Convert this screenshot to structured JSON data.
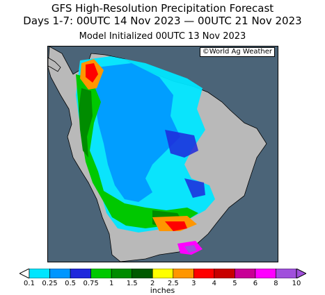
{
  "header": {
    "title": "GFS High-Resolution Precipitation Forecast",
    "period": "Days 1-7: 00UTC 14 Nov 2023 — 00UTC 21 Nov 2023",
    "init": "Model Initialized 00UTC 13 Nov 2023"
  },
  "map": {
    "credit": "©World Ag Weather",
    "ocean_color": "#4b6478",
    "land_color": "#b9b9b9"
  },
  "legend": {
    "units": "inches",
    "ticks": [
      "0.1",
      "0.25",
      "0.5",
      "0.75",
      "1",
      "1.5",
      "2",
      "2.5",
      "3",
      "4",
      "5",
      "6",
      "8",
      "10"
    ],
    "colors": [
      "#00e6ff",
      "#0096ff",
      "#1e28dc",
      "#00c800",
      "#008c00",
      "#005a00",
      "#ffff00",
      "#ff9600",
      "#ff0000",
      "#c80000",
      "#c80096",
      "#ff00ff",
      "#a050dc"
    ]
  }
}
